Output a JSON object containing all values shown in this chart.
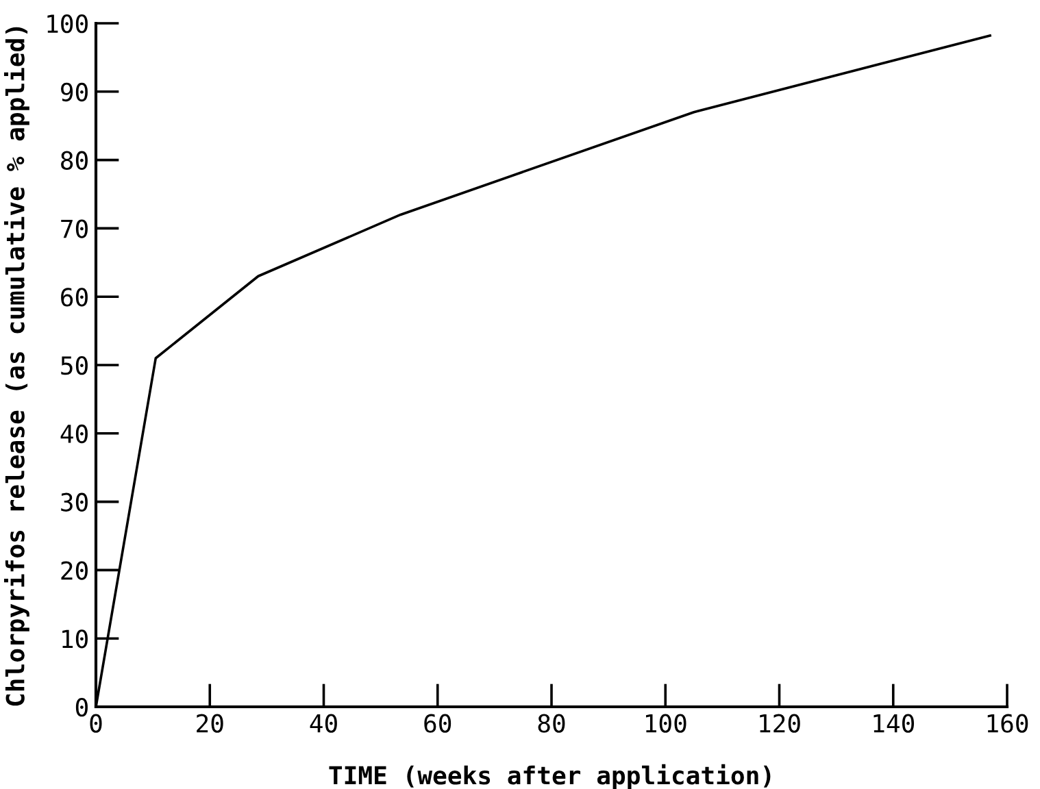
{
  "chart_data": {
    "type": "line",
    "xlabel": "TIME (weeks after application)",
    "ylabel": "Chlorpyrifos release (as cumulative % applied)",
    "x": [
      0,
      10.5,
      28.5,
      53.5,
      105,
      157
    ],
    "series": [
      {
        "color": "#000000",
        "values": [
          0,
          51,
          63,
          72,
          87,
          98.2
        ]
      }
    ],
    "xlim": [
      0,
      160
    ],
    "xticks": [
      0,
      20,
      40,
      60,
      80,
      100,
      120,
      140,
      160
    ],
    "ylim": [
      0,
      100
    ],
    "yticks": [
      0,
      10,
      20,
      30,
      40,
      50,
      60,
      70,
      80,
      90,
      100
    ],
    "grid": false,
    "marker": "none",
    "line_style": "solid"
  }
}
